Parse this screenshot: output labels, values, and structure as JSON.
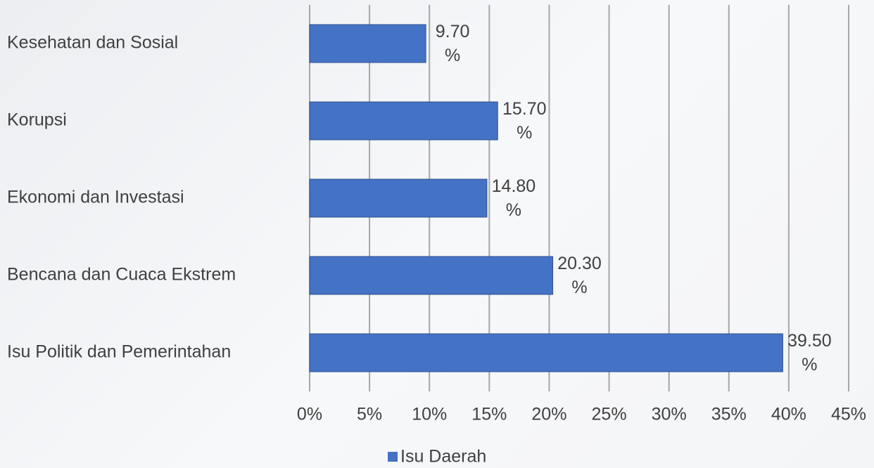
{
  "chart_data": {
    "type": "bar",
    "orientation": "horizontal",
    "categories": [
      "Kesehatan dan Sosial",
      "Korupsi",
      "Ekonomi dan Investasi",
      "Bencana dan Cuaca Ekstrem",
      "Isu Politik dan Pemerintahan"
    ],
    "series": [
      {
        "name": "Isu Daerah",
        "color": "#4472c4",
        "values": [
          9.7,
          15.7,
          14.8,
          20.3,
          39.5
        ],
        "value_labels": [
          "9.70%",
          "15.70%",
          "14.80%",
          "20.30%",
          "39.50%"
        ]
      }
    ],
    "xlim": [
      0,
      45
    ],
    "xticks": [
      {
        "value": 0,
        "label": "0%"
      },
      {
        "value": 5,
        "label": "5%"
      },
      {
        "value": 10,
        "label": "10%"
      },
      {
        "value": 15,
        "label": "15%"
      },
      {
        "value": 20,
        "label": "20%"
      },
      {
        "value": 25,
        "label": "25%"
      },
      {
        "value": 30,
        "label": "30%"
      },
      {
        "value": 35,
        "label": "35%"
      },
      {
        "value": 40,
        "label": "40%"
      },
      {
        "value": 45,
        "label": "45%"
      }
    ],
    "grid": true,
    "legend": "bottom"
  }
}
